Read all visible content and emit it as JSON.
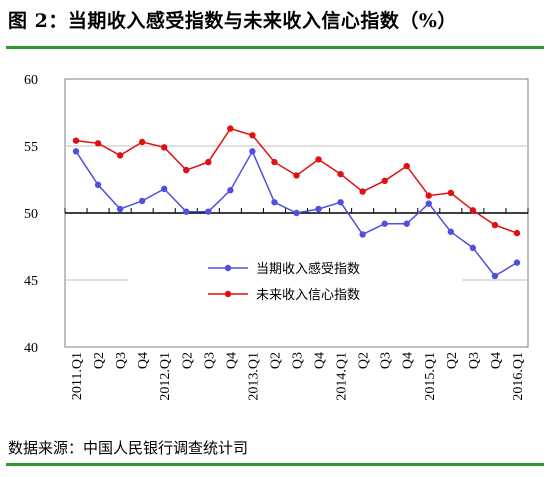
{
  "title": "图 2：当期收入感受指数与未来收入信心指数（%）",
  "source": "数据来源：中国人民银行调查统计司",
  "chart_data": {
    "type": "line",
    "title": "",
    "xlabel": "",
    "ylabel": "",
    "ylim": [
      40,
      60
    ],
    "yticks": [
      40,
      45,
      50,
      55,
      60
    ],
    "reference_line": 50,
    "grid": "horizontal, partial",
    "legend_position": "center-right",
    "categories": [
      "2011.Q1",
      "Q2",
      "Q3",
      "Q4",
      "2012.Q1",
      "Q2",
      "Q3",
      "Q4",
      "2013.Q1",
      "Q2",
      "Q3",
      "Q4",
      "2014.Q1",
      "Q2",
      "Q3",
      "Q4",
      "2015.Q1",
      "Q2",
      "Q3",
      "Q4",
      "2016.Q1"
    ],
    "series": [
      {
        "name": "当期收入感受指数",
        "color": "#5050e0",
        "values": [
          54.6,
          52.1,
          50.3,
          50.9,
          51.8,
          50.1,
          50.1,
          51.7,
          54.6,
          50.8,
          50.0,
          50.3,
          50.8,
          48.4,
          49.2,
          49.2,
          50.7,
          48.6,
          47.4,
          45.3,
          46.3
        ]
      },
      {
        "name": "未来收入信心指数",
        "color": "#e01010",
        "values": [
          55.4,
          55.2,
          54.3,
          55.3,
          54.9,
          53.2,
          53.8,
          56.3,
          55.8,
          53.8,
          52.8,
          54.0,
          52.9,
          51.6,
          52.4,
          53.5,
          51.3,
          51.5,
          50.2,
          49.1,
          48.5
        ]
      }
    ]
  }
}
